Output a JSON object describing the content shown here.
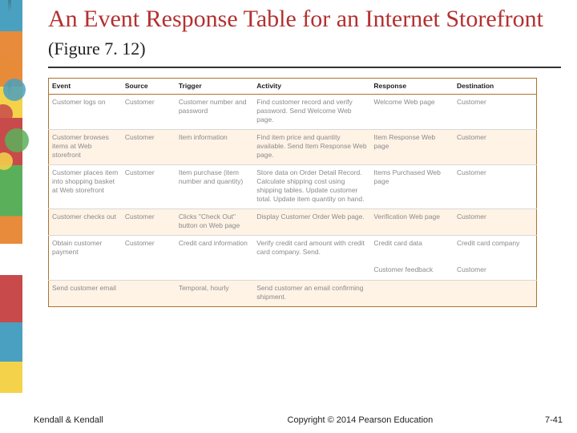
{
  "title_main": "An Event Response Table for an Internet Storefront ",
  "title_figref": "(Figure 7. 12)",
  "table": {
    "headers": [
      "Event",
      "Source",
      "Trigger",
      "Activity",
      "Response",
      "Destination"
    ],
    "rows": [
      {
        "alt": false,
        "cells": [
          "Customer logs on",
          "Customer",
          "Customer number and password",
          "Find customer record and verify password. Send Welcome Web page.",
          "Welcome Web page",
          "Customer"
        ]
      },
      {
        "alt": true,
        "cells": [
          "Customer browses items at Web storefront",
          "Customer",
          "Item information",
          "Find item price and quantity available. Send Item Response Web page.",
          "Item Response Web page",
          "Customer"
        ]
      },
      {
        "alt": false,
        "cells": [
          "Customer places item into shopping basket at Web storefront",
          "Customer",
          "Item purchase (item number and quantity)",
          "Store data on Order Detail Record. Calculate shipping cost using shipping tables. Update customer total. Update item quantity on hand.",
          "Items Purchased Web page",
          "Customer"
        ]
      },
      {
        "alt": true,
        "cells": [
          "Customer checks out",
          "Customer",
          "Clicks \"Check Out\" button on Web page",
          "Display Customer Order Web page.",
          "Verification Web page",
          "Customer"
        ]
      },
      {
        "alt": false,
        "cells": [
          "Obtain customer payment",
          "Customer",
          "Credit card information",
          "Verify credit card amount with credit card company. Send.",
          "Credit card data\n\nCustomer feedback",
          "Credit card company\n\nCustomer"
        ]
      },
      {
        "alt": true,
        "cells": [
          "Send customer email",
          "",
          "Temporal, hourly",
          "Send customer an email confirming shipment.",
          "",
          ""
        ]
      }
    ]
  },
  "footer": {
    "author": "Kendall & Kendall",
    "copyright": "Copyright © 2014 Pearson Education",
    "page": "7-41"
  }
}
